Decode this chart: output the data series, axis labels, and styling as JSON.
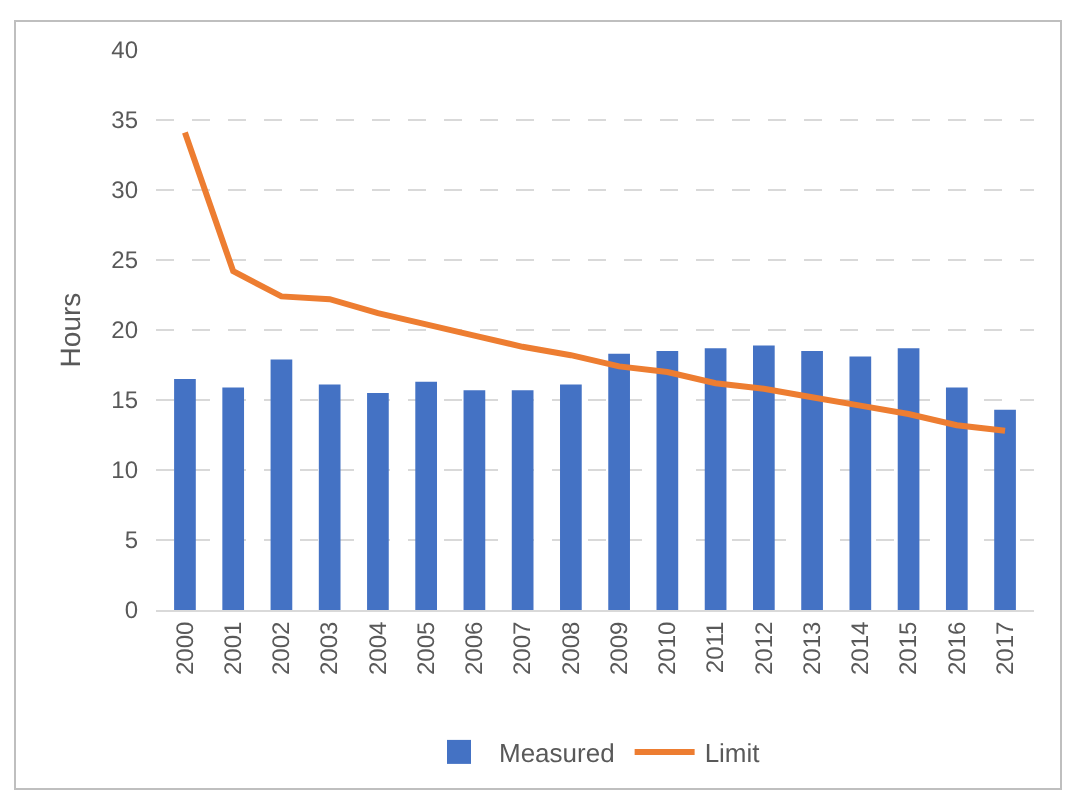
{
  "chart_data": {
    "type": "bar",
    "ylabel": "Hours",
    "categories": [
      "2000",
      "2001",
      "2002",
      "2003",
      "2004",
      "2005",
      "2006",
      "2007",
      "2008",
      "2009",
      "2010",
      "2011",
      "2012",
      "2013",
      "2014",
      "2015",
      "2016",
      "2017"
    ],
    "series": [
      {
        "name": "Measured",
        "color": "#4472c4",
        "values": [
          16.5,
          15.9,
          17.9,
          16.1,
          15.5,
          16.3,
          15.7,
          15.7,
          16.1,
          18.3,
          18.5,
          18.7,
          18.9,
          18.5,
          18.1,
          18.7,
          15.9,
          14.3
        ]
      },
      {
        "name": "Limit",
        "type": "line",
        "color": "#ed7d31",
        "values": [
          34.1,
          24.2,
          22.4,
          22.2,
          21.2,
          20.4,
          19.6,
          18.8,
          18.2,
          17.4,
          17.0,
          16.2,
          15.8,
          15.2,
          14.6,
          14.0,
          13.2,
          12.8
        ]
      }
    ],
    "ylim": [
      0,
      40
    ],
    "yticks": [
      0,
      5,
      10,
      15,
      20,
      25,
      30,
      35,
      40
    ],
    "grid": "y",
    "legend": "bottom",
    "marker": "none",
    "line_style": "solid"
  }
}
